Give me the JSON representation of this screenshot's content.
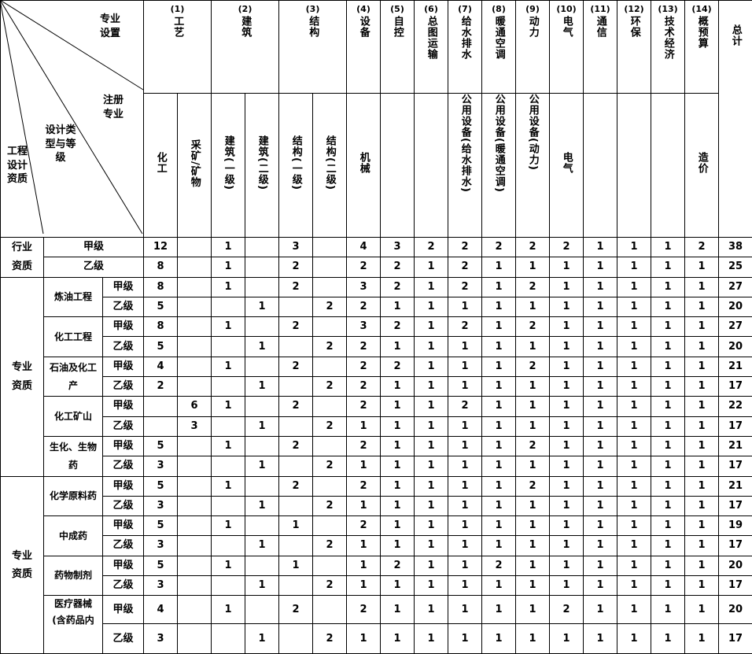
{
  "corner": {
    "top": "专业设置",
    "middle": "注册专业",
    "lower": "设计类型与等级",
    "left": "工程设计资质"
  },
  "groups": [
    {
      "num": "(1)",
      "name": "工艺",
      "span": 2
    },
    {
      "num": "(2)",
      "name": "建筑",
      "span": 2
    },
    {
      "num": "(3)",
      "name": "结构",
      "span": 2
    },
    {
      "num": "(4)",
      "name": "设备",
      "span": 1
    },
    {
      "num": "(5)",
      "name": "自控",
      "span": 1
    },
    {
      "num": "(6)",
      "name": "总图运输",
      "span": 1
    },
    {
      "num": "(7)",
      "name": "给水排水",
      "span": 1
    },
    {
      "num": "(8)",
      "name": "暖通空调",
      "span": 1
    },
    {
      "num": "(9)",
      "name": "动力",
      "span": 1
    },
    {
      "num": "(10)",
      "name": "电气",
      "span": 1
    },
    {
      "num": "(11)",
      "name": "通信",
      "span": 1
    },
    {
      "num": "(12)",
      "name": "环保",
      "span": 1
    },
    {
      "num": "(13)",
      "name": "技术经济",
      "span": 1
    },
    {
      "num": "(14)",
      "name": "概预算",
      "span": 1
    }
  ],
  "total_label": "总计",
  "registered": [
    "化工",
    "采矿/矿物",
    "建筑(一级)",
    "建筑(二级)",
    "结构(一级)",
    "结构(二级)",
    "机械",
    "",
    "",
    "公用设备(给水排水)",
    "公用设备(暖通空调)",
    "公用设备(动力)",
    "电气",
    "",
    "",
    "",
    "造价"
  ],
  "sections": [
    {
      "label": "行业资质",
      "groups": [
        {
          "label": "",
          "rows": [
            {
              "grade": "甲级",
              "values": [
                "12",
                "",
                "1",
                "",
                "3",
                "",
                "4",
                "3",
                "2",
                "2",
                "2",
                "2",
                "2",
                "1",
                "1",
                "1",
                "2",
                "38"
              ]
            },
            {
              "grade": "乙级",
              "values": [
                "8",
                "",
                "1",
                "",
                "2",
                "",
                "2",
                "2",
                "1",
                "2",
                "1",
                "1",
                "1",
                "1",
                "1",
                "1",
                "1",
                "25"
              ]
            }
          ]
        }
      ]
    },
    {
      "label": "专业资质",
      "groups": [
        {
          "label": "炼油工程",
          "rows": [
            {
              "grade": "甲级",
              "values": [
                "8",
                "",
                "1",
                "",
                "2",
                "",
                "3",
                "2",
                "1",
                "2",
                "1",
                "2",
                "1",
                "1",
                "1",
                "1",
                "1",
                "27"
              ]
            },
            {
              "grade": "乙级",
              "values": [
                "5",
                "",
                "",
                "1",
                "",
                "2",
                "2",
                "1",
                "1",
                "1",
                "1",
                "1",
                "1",
                "1",
                "1",
                "1",
                "1",
                "20"
              ]
            }
          ]
        },
        {
          "label": "化工工程",
          "rows": [
            {
              "grade": "甲级",
              "values": [
                "8",
                "",
                "1",
                "",
                "2",
                "",
                "3",
                "2",
                "1",
                "2",
                "1",
                "2",
                "1",
                "1",
                "1",
                "1",
                "1",
                "27"
              ]
            },
            {
              "grade": "乙级",
              "values": [
                "5",
                "",
                "",
                "1",
                "",
                "2",
                "2",
                "1",
                "1",
                "1",
                "1",
                "1",
                "1",
                "1",
                "1",
                "1",
                "1",
                "20"
              ]
            }
          ]
        },
        {
          "label": "石油及化工产",
          "rows": [
            {
              "grade": "甲级",
              "values": [
                "4",
                "",
                "1",
                "",
                "2",
                "",
                "2",
                "2",
                "1",
                "1",
                "1",
                "2",
                "1",
                "1",
                "1",
                "1",
                "1",
                "21"
              ]
            },
            {
              "grade": "乙级",
              "values": [
                "2",
                "",
                "",
                "1",
                "",
                "2",
                "2",
                "1",
                "1",
                "1",
                "1",
                "1",
                "1",
                "1",
                "1",
                "1",
                "1",
                "17"
              ]
            }
          ]
        },
        {
          "label": "化工矿山",
          "rows": [
            {
              "grade": "甲级",
              "values": [
                "",
                "6",
                "1",
                "",
                "2",
                "",
                "2",
                "1",
                "1",
                "2",
                "1",
                "1",
                "1",
                "1",
                "1",
                "1",
                "1",
                "22"
              ]
            },
            {
              "grade": "乙级",
              "values": [
                "",
                "3",
                "",
                "1",
                "",
                "2",
                "1",
                "1",
                "1",
                "1",
                "1",
                "1",
                "1",
                "1",
                "1",
                "1",
                "1",
                "17"
              ]
            }
          ]
        },
        {
          "label": "生化、生物药",
          "rows": [
            {
              "grade": "甲级",
              "values": [
                "5",
                "",
                "1",
                "",
                "2",
                "",
                "2",
                "1",
                "1",
                "1",
                "1",
                "2",
                "1",
                "1",
                "1",
                "1",
                "1",
                "21"
              ]
            },
            {
              "grade": "乙级",
              "values": [
                "3",
                "",
                "",
                "1",
                "",
                "2",
                "1",
                "1",
                "1",
                "1",
                "1",
                "1",
                "1",
                "1",
                "1",
                "1",
                "1",
                "17"
              ]
            }
          ]
        }
      ]
    },
    {
      "label": "专业资质",
      "groups": [
        {
          "label": "化学原料药",
          "rows": [
            {
              "grade": "甲级",
              "values": [
                "5",
                "",
                "1",
                "",
                "2",
                "",
                "2",
                "1",
                "1",
                "1",
                "1",
                "2",
                "1",
                "1",
                "1",
                "1",
                "1",
                "21"
              ]
            },
            {
              "grade": "乙级",
              "values": [
                "3",
                "",
                "",
                "1",
                "",
                "2",
                "1",
                "1",
                "1",
                "1",
                "1",
                "1",
                "1",
                "1",
                "1",
                "1",
                "1",
                "17"
              ]
            }
          ]
        },
        {
          "label": "中成药",
          "rows": [
            {
              "grade": "甲级",
              "values": [
                "5",
                "",
                "1",
                "",
                "1",
                "",
                "2",
                "1",
                "1",
                "1",
                "1",
                "1",
                "1",
                "1",
                "1",
                "1",
                "1",
                "19"
              ]
            },
            {
              "grade": "乙级",
              "values": [
                "3",
                "",
                "",
                "1",
                "",
                "2",
                "1",
                "1",
                "1",
                "1",
                "1",
                "1",
                "1",
                "1",
                "1",
                "1",
                "1",
                "17"
              ]
            }
          ]
        },
        {
          "label": "药物制剂",
          "rows": [
            {
              "grade": "甲级",
              "values": [
                "5",
                "",
                "1",
                "",
                "1",
                "",
                "1",
                "2",
                "1",
                "1",
                "2",
                "1",
                "1",
                "1",
                "1",
                "1",
                "1",
                "20"
              ]
            },
            {
              "grade": "乙级",
              "values": [
                "3",
                "",
                "",
                "1",
                "",
                "2",
                "1",
                "1",
                "1",
                "1",
                "1",
                "1",
                "1",
                "1",
                "1",
                "1",
                "1",
                "17"
              ]
            }
          ]
        },
        {
          "label": "医疗器械(含药品内",
          "rows": [
            {
              "grade": "甲级",
              "values": [
                "4",
                "",
                "1",
                "",
                "2",
                "",
                "2",
                "1",
                "1",
                "1",
                "1",
                "1",
                "2",
                "1",
                "1",
                "1",
                "1",
                "20"
              ]
            },
            {
              "grade": "乙级",
              "values": [
                "3",
                "",
                "",
                "1",
                "",
                "2",
                "1",
                "1",
                "1",
                "1",
                "1",
                "1",
                "1",
                "1",
                "1",
                "1",
                "1",
                "17"
              ]
            }
          ]
        }
      ]
    }
  ]
}
